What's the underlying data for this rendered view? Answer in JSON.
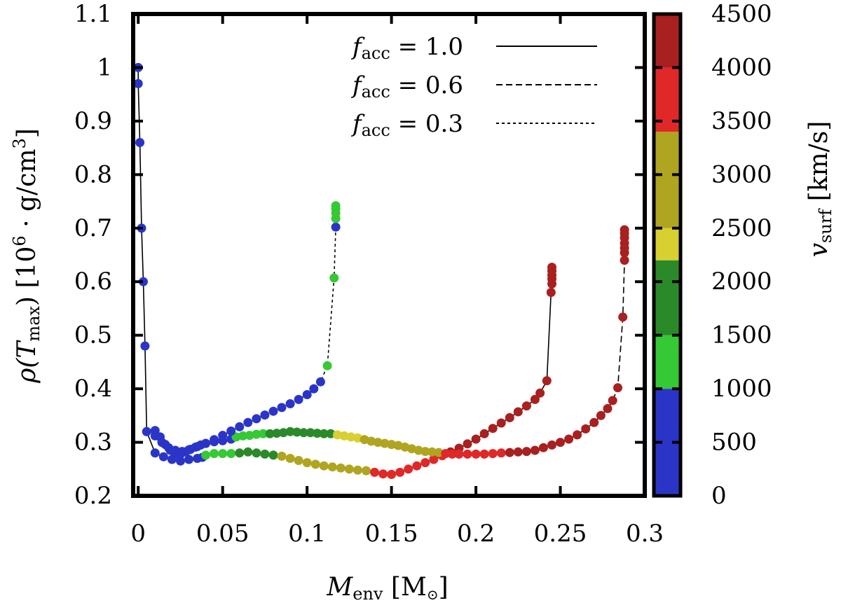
{
  "chart_data": {
    "type": "scatter",
    "xlabel": "M_env [M_⊙]",
    "xlabel_parts": {
      "main": "M",
      "sub": "env",
      "unit": " [M",
      "unit_end": "]"
    },
    "ylabel": "ρ(T_max) [10^6 · g/cm^3]",
    "ylabel_parts": {
      "pre": "ρ(",
      "main": "T",
      "sub": "max",
      "mid": ") [10",
      "exp": "6",
      "mid2": " · g/cm",
      "exp2": "3",
      "end": "]"
    },
    "colorbar_label": "v_surf [km/s]",
    "colorbar_label_parts": {
      "main": "v",
      "sub": "surf",
      "unit": " [km/s]"
    },
    "xlim": [
      -0.003,
      0.3
    ],
    "ylim": [
      0.2,
      1.1
    ],
    "xticks": [
      "0",
      "0.05",
      "0.1",
      "0.15",
      "0.2",
      "0.25",
      "0.3"
    ],
    "xtick_values": [
      0,
      0.05,
      0.1,
      0.15,
      0.2,
      0.25,
      0.3
    ],
    "yticks": [
      "0.2",
      "0.3",
      "0.4",
      "0.5",
      "0.6",
      "0.7",
      "0.8",
      "0.9",
      "1",
      "1.1"
    ],
    "ytick_values": [
      0.2,
      0.3,
      0.4,
      0.5,
      0.6,
      0.7,
      0.8,
      0.9,
      1.0,
      1.1
    ],
    "colorbar": {
      "range": [
        0,
        4500
      ],
      "ticks": [
        "0",
        "500",
        "1000",
        "1500",
        "2000",
        "2500",
        "3000",
        "3500",
        "4000",
        "4500"
      ],
      "tick_values": [
        0,
        500,
        1000,
        1500,
        2000,
        2500,
        3000,
        3500,
        4000,
        4500
      ],
      "bands": [
        {
          "from": 0,
          "to": 1000,
          "color": "#2a35c8"
        },
        {
          "from": 1000,
          "to": 1500,
          "color": "#35c935"
        },
        {
          "from": 1500,
          "to": 2200,
          "color": "#2a8a2a"
        },
        {
          "from": 2200,
          "to": 2500,
          "color": "#d8d030"
        },
        {
          "from": 2500,
          "to": 3400,
          "color": "#b0a520"
        },
        {
          "from": 3400,
          "to": 4000,
          "color": "#e02828"
        },
        {
          "from": 4000,
          "to": 4500,
          "color": "#a82020"
        }
      ]
    },
    "legend": [
      {
        "prefix": "f",
        "sub": "acc",
        "value": " = 1.0",
        "dash": "solid"
      },
      {
        "prefix": "f",
        "sub": "acc",
        "value": " = 0.6",
        "dash": "dashed"
      },
      {
        "prefix": "f",
        "sub": "acc",
        "value": " = 0.3",
        "dash": "dotted"
      }
    ],
    "legend_position": "top-right",
    "series": [
      {
        "name": "f_acc = 1.0",
        "dash": "solid",
        "points": [
          [
            0.0,
            1.0,
            300
          ],
          [
            0.0,
            0.97,
            300
          ],
          [
            0.001,
            0.86,
            300
          ],
          [
            0.002,
            0.7,
            300
          ],
          [
            0.003,
            0.6,
            300
          ],
          [
            0.004,
            0.48,
            300
          ],
          [
            0.005,
            0.32,
            300
          ],
          [
            0.01,
            0.28,
            300
          ],
          [
            0.015,
            0.273,
            300
          ],
          [
            0.02,
            0.268,
            300
          ],
          [
            0.025,
            0.265,
            300
          ],
          [
            0.03,
            0.268,
            300
          ],
          [
            0.035,
            0.27,
            300
          ],
          [
            0.038,
            0.272,
            300
          ],
          [
            0.04,
            0.276,
            1200
          ],
          [
            0.045,
            0.279,
            1300
          ],
          [
            0.05,
            0.279,
            1300
          ],
          [
            0.055,
            0.279,
            1300
          ],
          [
            0.06,
            0.28,
            1700
          ],
          [
            0.065,
            0.282,
            1800
          ],
          [
            0.07,
            0.28,
            1800
          ],
          [
            0.075,
            0.278,
            1900
          ],
          [
            0.08,
            0.276,
            1900
          ],
          [
            0.085,
            0.274,
            2600
          ],
          [
            0.09,
            0.27,
            2700
          ],
          [
            0.095,
            0.266,
            2800
          ],
          [
            0.1,
            0.262,
            2900
          ],
          [
            0.105,
            0.259,
            2900
          ],
          [
            0.11,
            0.256,
            2900
          ],
          [
            0.115,
            0.254,
            3000
          ],
          [
            0.12,
            0.252,
            3000
          ],
          [
            0.125,
            0.25,
            3000
          ],
          [
            0.13,
            0.248,
            3100
          ],
          [
            0.135,
            0.247,
            3100
          ],
          [
            0.14,
            0.244,
            3700
          ],
          [
            0.145,
            0.241,
            3800
          ],
          [
            0.15,
            0.24,
            3800
          ],
          [
            0.155,
            0.244,
            3800
          ],
          [
            0.16,
            0.25,
            3900
          ],
          [
            0.165,
            0.256,
            3900
          ],
          [
            0.17,
            0.262,
            3900
          ],
          [
            0.175,
            0.268,
            3900
          ],
          [
            0.18,
            0.275,
            3900
          ],
          [
            0.185,
            0.282,
            4000
          ],
          [
            0.19,
            0.289,
            4000
          ],
          [
            0.195,
            0.297,
            4100
          ],
          [
            0.2,
            0.306,
            4100
          ],
          [
            0.205,
            0.316,
            4100
          ],
          [
            0.21,
            0.326,
            4200
          ],
          [
            0.215,
            0.336,
            4200
          ],
          [
            0.22,
            0.346,
            4200
          ],
          [
            0.225,
            0.357,
            4200
          ],
          [
            0.23,
            0.368,
            4200
          ],
          [
            0.235,
            0.38,
            4300
          ],
          [
            0.238,
            0.392,
            4300
          ],
          [
            0.242,
            0.415,
            4300
          ],
          [
            0.2445,
            0.58,
            4300
          ],
          [
            0.245,
            0.596,
            4300
          ],
          [
            0.245,
            0.605,
            4300
          ],
          [
            0.245,
            0.612,
            4300
          ],
          [
            0.245,
            0.62,
            4300
          ],
          [
            0.245,
            0.627,
            4300
          ]
        ]
      },
      {
        "name": "f_acc = 0.6",
        "dash": "dashed",
        "points": [
          [
            0.005,
            0.32,
            300
          ],
          [
            0.01,
            0.322,
            300
          ],
          [
            0.013,
            0.31,
            300
          ],
          [
            0.016,
            0.296,
            300
          ],
          [
            0.019,
            0.285,
            300
          ],
          [
            0.022,
            0.278,
            300
          ],
          [
            0.025,
            0.278,
            300
          ],
          [
            0.028,
            0.282,
            300
          ],
          [
            0.031,
            0.287,
            300
          ],
          [
            0.034,
            0.291,
            300
          ],
          [
            0.037,
            0.295,
            300
          ],
          [
            0.04,
            0.298,
            300
          ],
          [
            0.045,
            0.301,
            300
          ],
          [
            0.05,
            0.303,
            300
          ],
          [
            0.055,
            0.306,
            300
          ],
          [
            0.058,
            0.31,
            1200
          ],
          [
            0.062,
            0.312,
            1300
          ],
          [
            0.066,
            0.313,
            1300
          ],
          [
            0.07,
            0.315,
            1400
          ],
          [
            0.074,
            0.316,
            1400
          ],
          [
            0.078,
            0.316,
            1800
          ],
          [
            0.082,
            0.317,
            1800
          ],
          [
            0.086,
            0.318,
            1900
          ],
          [
            0.09,
            0.32,
            1900
          ],
          [
            0.094,
            0.319,
            1900
          ],
          [
            0.098,
            0.318,
            1900
          ],
          [
            0.102,
            0.318,
            2000
          ],
          [
            0.106,
            0.317,
            2000
          ],
          [
            0.11,
            0.316,
            2000
          ],
          [
            0.114,
            0.316,
            2000
          ],
          [
            0.118,
            0.314,
            2400
          ],
          [
            0.122,
            0.312,
            2400
          ],
          [
            0.126,
            0.31,
            2400
          ],
          [
            0.13,
            0.308,
            2400
          ],
          [
            0.134,
            0.305,
            2700
          ],
          [
            0.138,
            0.302,
            2700
          ],
          [
            0.142,
            0.3,
            2800
          ],
          [
            0.146,
            0.298,
            2800
          ],
          [
            0.15,
            0.296,
            2900
          ],
          [
            0.154,
            0.294,
            2900
          ],
          [
            0.158,
            0.291,
            3000
          ],
          [
            0.162,
            0.288,
            3000
          ],
          [
            0.166,
            0.285,
            3000
          ],
          [
            0.17,
            0.283,
            3000
          ],
          [
            0.174,
            0.282,
            3100
          ],
          [
            0.178,
            0.281,
            3100
          ],
          [
            0.182,
            0.279,
            3700
          ],
          [
            0.186,
            0.278,
            3700
          ],
          [
            0.19,
            0.278,
            3800
          ],
          [
            0.195,
            0.278,
            3800
          ],
          [
            0.2,
            0.278,
            3900
          ],
          [
            0.205,
            0.278,
            3900
          ],
          [
            0.21,
            0.279,
            3900
          ],
          [
            0.215,
            0.28,
            3900
          ],
          [
            0.22,
            0.281,
            4000
          ],
          [
            0.225,
            0.282,
            4000
          ],
          [
            0.23,
            0.283,
            4000
          ],
          [
            0.235,
            0.285,
            4100
          ],
          [
            0.24,
            0.29,
            4100
          ],
          [
            0.245,
            0.295,
            4100
          ],
          [
            0.25,
            0.3,
            4100
          ],
          [
            0.255,
            0.306,
            4200
          ],
          [
            0.26,
            0.314,
            4200
          ],
          [
            0.265,
            0.325,
            4200
          ],
          [
            0.27,
            0.337,
            4200
          ],
          [
            0.274,
            0.35,
            4200
          ],
          [
            0.278,
            0.363,
            4300
          ],
          [
            0.281,
            0.378,
            4300
          ],
          [
            0.284,
            0.402,
            4300
          ],
          [
            0.287,
            0.534,
            4300
          ],
          [
            0.288,
            0.64,
            4300
          ],
          [
            0.288,
            0.654,
            4300
          ],
          [
            0.288,
            0.663,
            4300
          ],
          [
            0.288,
            0.672,
            4300
          ],
          [
            0.288,
            0.682,
            4300
          ],
          [
            0.288,
            0.69,
            4300
          ],
          [
            0.288,
            0.697,
            4300
          ]
        ]
      },
      {
        "name": "f_acc = 0.3",
        "dash": "dotted",
        "points": [
          [
            0.01,
            0.312,
            300
          ],
          [
            0.014,
            0.3,
            300
          ],
          [
            0.018,
            0.29,
            300
          ],
          [
            0.022,
            0.285,
            300
          ],
          [
            0.026,
            0.283,
            300
          ],
          [
            0.03,
            0.286,
            300
          ],
          [
            0.035,
            0.292,
            300
          ],
          [
            0.04,
            0.298,
            300
          ],
          [
            0.045,
            0.305,
            300
          ],
          [
            0.05,
            0.313,
            300
          ],
          [
            0.055,
            0.321,
            300
          ],
          [
            0.06,
            0.329,
            300
          ],
          [
            0.065,
            0.337,
            300
          ],
          [
            0.07,
            0.344,
            300
          ],
          [
            0.075,
            0.351,
            300
          ],
          [
            0.08,
            0.358,
            300
          ],
          [
            0.085,
            0.365,
            300
          ],
          [
            0.09,
            0.372,
            300
          ],
          [
            0.095,
            0.38,
            300
          ],
          [
            0.1,
            0.389,
            300
          ],
          [
            0.104,
            0.4,
            300
          ],
          [
            0.108,
            0.413,
            300
          ],
          [
            0.112,
            0.443,
            1200
          ],
          [
            0.116,
            0.607,
            1200
          ],
          [
            0.117,
            0.702,
            300
          ],
          [
            0.117,
            0.718,
            1300
          ],
          [
            0.117,
            0.728,
            1300
          ],
          [
            0.117,
            0.736,
            1300
          ],
          [
            0.117,
            0.742,
            1300
          ]
        ]
      }
    ]
  }
}
